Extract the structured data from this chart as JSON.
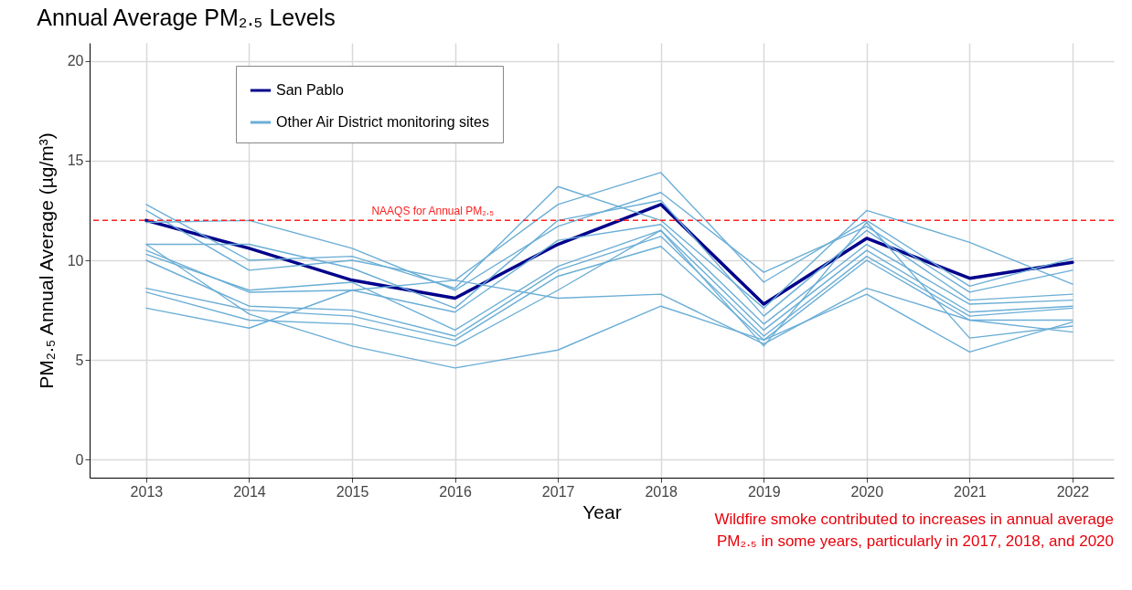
{
  "chart_data": {
    "type": "line",
    "title": "Annual Average PM₂.₅ Levels",
    "xlabel": "Year",
    "ylabel": "PM₂.₅ Annual Average (µg/m³)",
    "x": [
      2013,
      2014,
      2015,
      2016,
      2017,
      2018,
      2019,
      2020,
      2021,
      2022
    ],
    "xlim": [
      2012.45,
      2022.4
    ],
    "xticks": [
      2013,
      2014,
      2015,
      2016,
      2017,
      2018,
      2019,
      2020,
      2021,
      2022
    ],
    "ylim": [
      -0.9,
      20.9
    ],
    "yticks": [
      0,
      5,
      10,
      15,
      20
    ],
    "grid": true,
    "legend": "top left",
    "line_style": "solid",
    "marker": "none",
    "series": [
      {
        "name": "San Pablo",
        "color": "#00008b",
        "values": [
          12.0,
          10.6,
          9.0,
          8.1,
          10.8,
          12.8,
          7.8,
          11.1,
          9.1,
          9.9
        ]
      },
      {
        "name": "Other Air District monitoring sites",
        "color": "#6baed6",
        "values": [
          12.8,
          10.0,
          10.2,
          8.6,
          13.7,
          12.0,
          7.6,
          12.5,
          10.9,
          8.8
        ]
      },
      {
        "color": "#6baed6",
        "values": [
          12.5,
          9.5,
          10.0,
          9.0,
          12.8,
          14.4,
          8.9,
          12.0,
          8.7,
          10.1
        ]
      },
      {
        "color": "#6baed6",
        "values": [
          11.9,
          12.0,
          10.6,
          8.5,
          11.7,
          13.4,
          9.4,
          11.7,
          8.4,
          9.5
        ]
      },
      {
        "color": "#6baed6",
        "values": [
          10.8,
          10.8,
          9.6,
          7.6,
          12.0,
          13.0,
          7.2,
          11.5,
          8.0,
          8.3
        ]
      },
      {
        "color": "#6baed6",
        "values": [
          10.5,
          8.4,
          8.5,
          7.4,
          11.0,
          11.8,
          6.8,
          10.8,
          7.8,
          8.0
        ]
      },
      {
        "color": "#6baed6",
        "values": [
          10.3,
          8.5,
          8.9,
          6.5,
          9.7,
          11.5,
          6.5,
          10.5,
          7.4,
          7.7
        ]
      },
      {
        "color": "#6baed6",
        "values": [
          10.0,
          7.7,
          7.5,
          6.2,
          9.5,
          11.2,
          6.2,
          10.2,
          7.2,
          7.6
        ]
      },
      {
        "color": "#6baed6",
        "values": [
          8.6,
          7.5,
          7.2,
          6.0,
          9.2,
          10.7,
          6.0,
          10.0,
          7.0,
          7.0
        ]
      },
      {
        "color": "#6baed6",
        "values": [
          8.4,
          7.0,
          6.8,
          5.7,
          8.5,
          11.5,
          5.7,
          11.9,
          6.1,
          6.7
        ]
      },
      {
        "color": "#6baed6",
        "values": [
          7.6,
          6.6,
          8.5,
          9.0,
          8.1,
          8.3,
          5.8,
          8.6,
          7.0,
          6.4
        ]
      },
      {
        "color": "#6baed6",
        "values": [
          10.8,
          7.3,
          5.7,
          4.6,
          5.5,
          7.7,
          6.0,
          8.3,
          5.4,
          6.9
        ]
      }
    ],
    "ref_lines": [
      {
        "axis": "y",
        "value": 12,
        "label": "NAAQS for Annual PM₂.₅",
        "color": "#ff2020",
        "line_style": "dashed"
      }
    ],
    "annotations": [
      "Wildfire smoke contributed to increases in annual average\nPM₂.₅ in some years, particularly in 2017, 2018, and 2020"
    ]
  }
}
